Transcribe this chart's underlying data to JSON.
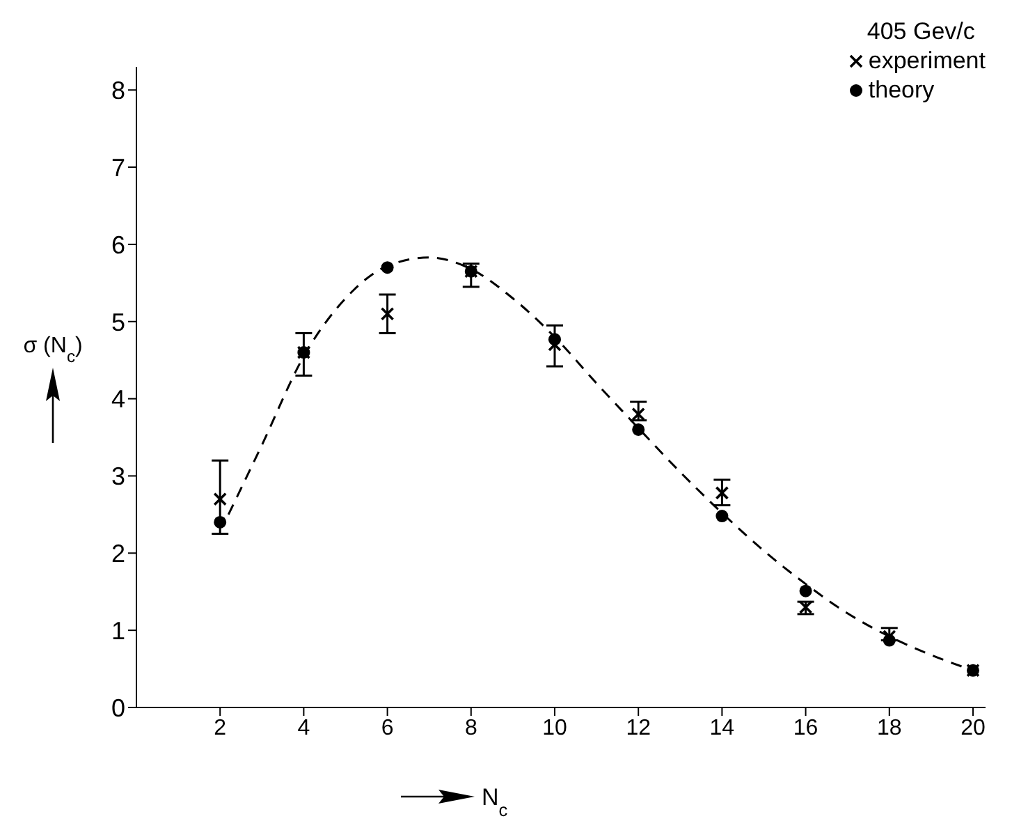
{
  "chart_data": {
    "type": "scatter",
    "legend_title": "405 Gev/c",
    "xlabel": "N$_{c}$",
    "ylabel": "σ (N$_{c}$)",
    "x": [
      2,
      4,
      6,
      8,
      10,
      12,
      14,
      16,
      18,
      20
    ],
    "xlim": [
      0,
      20.3
    ],
    "xticks": [
      2,
      4,
      6,
      8,
      10,
      12,
      14,
      16,
      18,
      20
    ],
    "ylim": [
      0,
      8.3
    ],
    "yticks": [
      0,
      1,
      2,
      3,
      4,
      5,
      6,
      7,
      8
    ],
    "grid": false,
    "legend": "top right",
    "series": [
      {
        "name": "experiment",
        "marker": "cross",
        "color": "#000000",
        "values": [
          2.7,
          4.6,
          5.1,
          5.65,
          4.7,
          3.8,
          2.78,
          1.3,
          0.92,
          0.48
        ],
        "errors": [
          [
            2.25,
            3.2
          ],
          [
            4.3,
            4.85
          ],
          [
            4.85,
            5.35
          ],
          [
            5.45,
            5.75
          ],
          [
            4.42,
            4.95
          ],
          [
            3.72,
            3.96
          ],
          [
            2.62,
            2.95
          ],
          [
            1.21,
            1.37
          ],
          [
            0.87,
            1.03
          ],
          null
        ]
      },
      {
        "name": "theory",
        "marker": "circle",
        "color": "#000000",
        "values": [
          2.4,
          4.6,
          5.7,
          5.65,
          4.77,
          3.6,
          2.48,
          1.51,
          0.87,
          0.48
        ]
      },
      {
        "type": "line",
        "line_style": "dashed",
        "marker": "none",
        "color": "#000000",
        "x": [
          2.2,
          3,
          4,
          5,
          6,
          7,
          8,
          9,
          10,
          11,
          12,
          13,
          14,
          15,
          16,
          17,
          18,
          19,
          20
        ],
        "values": [
          2.5,
          3.4,
          4.55,
          5.3,
          5.72,
          5.83,
          5.68,
          5.3,
          4.8,
          4.2,
          3.62,
          3.05,
          2.52,
          2.03,
          1.6,
          1.22,
          0.92,
          0.68,
          0.48
        ]
      }
    ]
  }
}
